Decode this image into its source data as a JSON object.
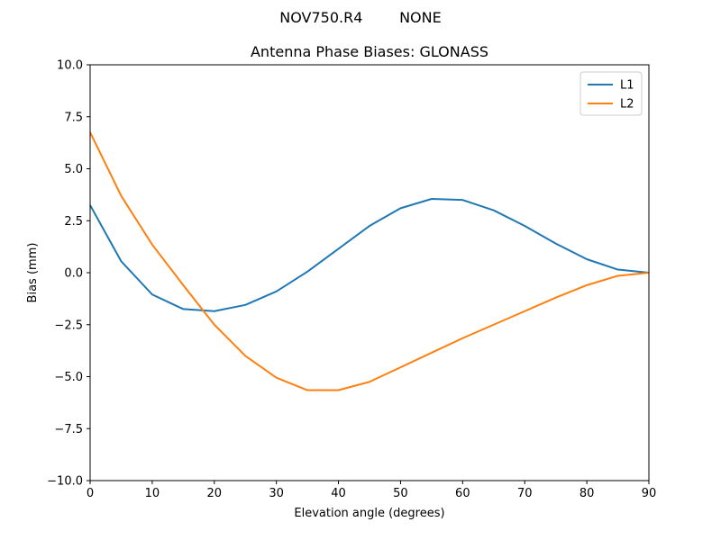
{
  "figure": {
    "suptitle": "NOV750.R4        NONE"
  },
  "chart_data": {
    "type": "line",
    "title": "Antenna Phase Biases: GLONASS",
    "xlabel": "Elevation angle (degrees)",
    "ylabel": "Bias (mm)",
    "xlim": [
      0,
      90
    ],
    "ylim": [
      -10,
      10
    ],
    "xticks": [
      0,
      10,
      20,
      30,
      40,
      50,
      60,
      70,
      80,
      90
    ],
    "yticks": [
      -10.0,
      -7.5,
      -5.0,
      -2.5,
      0.0,
      2.5,
      5.0,
      7.5,
      10.0
    ],
    "x": [
      0,
      5,
      10,
      15,
      20,
      25,
      30,
      35,
      40,
      45,
      50,
      55,
      60,
      65,
      70,
      75,
      80,
      85,
      90
    ],
    "series": [
      {
        "name": "L1",
        "color": "#1f77b4",
        "values": [
          3.25,
          0.55,
          -1.05,
          -1.75,
          -1.85,
          -1.55,
          -0.9,
          0.05,
          1.15,
          2.25,
          3.1,
          3.55,
          3.5,
          3.0,
          2.25,
          1.4,
          0.65,
          0.15,
          0.0
        ]
      },
      {
        "name": "L2",
        "color": "#ff7f0e",
        "values": [
          6.75,
          3.7,
          1.35,
          -0.6,
          -2.5,
          -4.0,
          -5.05,
          -5.65,
          -5.65,
          -5.25,
          -4.55,
          -3.85,
          -3.15,
          -2.5,
          -1.85,
          -1.2,
          -0.6,
          -0.15,
          0.0
        ]
      }
    ],
    "legend_position": "top-right",
    "grid": false
  }
}
